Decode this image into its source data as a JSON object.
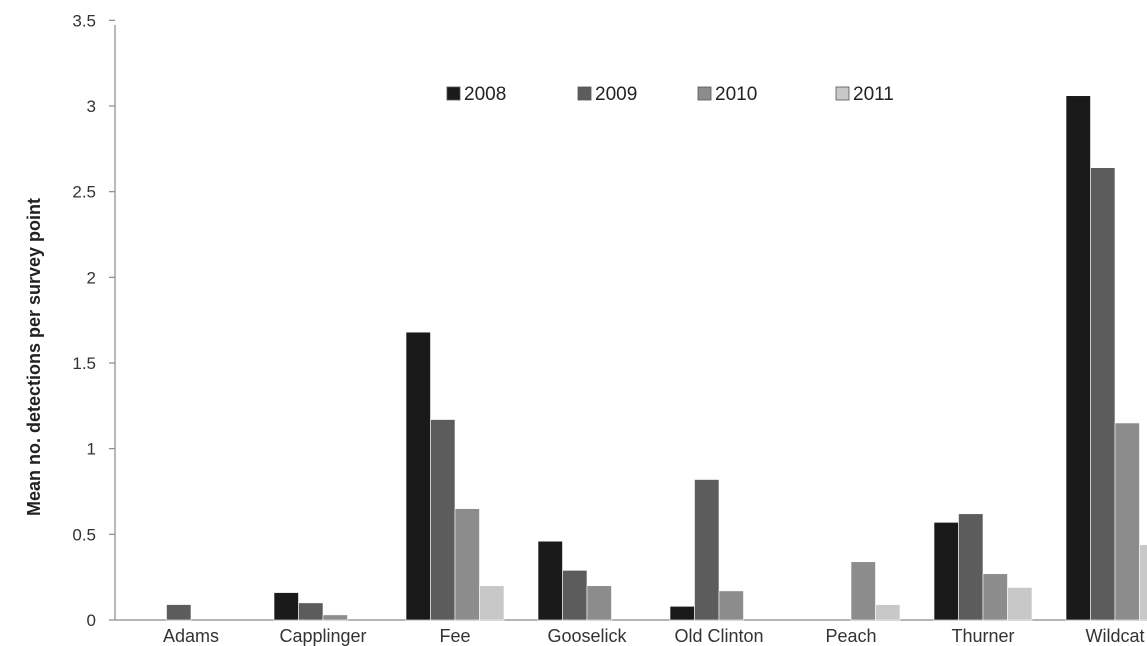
{
  "chart_data": {
    "type": "bar",
    "title": "",
    "xlabel": "",
    "ylabel": "Mean  no.  detections per survey point",
    "ylim": [
      0,
      3.5
    ],
    "yticks": [
      "0",
      "0.5",
      "1",
      "1.5",
      "2",
      "2.5",
      "3",
      "3.5"
    ],
    "grid": false,
    "legend_position": "top-center",
    "categories": [
      "Adams",
      "Capplinger",
      "Fee",
      "Gooselick",
      "Old Clinton",
      "Peach",
      "Thurner",
      "Wildcat"
    ],
    "series": [
      {
        "name": "2008",
        "color": "#1a1a1a",
        "values": [
          0,
          0.16,
          1.68,
          0.46,
          0.08,
          0,
          0.57,
          3.06
        ]
      },
      {
        "name": "2009",
        "color": "#5c5c5c",
        "values": [
          0.09,
          0.1,
          1.17,
          0.29,
          0.82,
          0,
          0.62,
          2.64
        ]
      },
      {
        "name": "2010",
        "color": "#8c8c8c",
        "values": [
          0,
          0.03,
          0.65,
          0.2,
          0.17,
          0.34,
          0.27,
          1.15
        ]
      },
      {
        "name": "2011",
        "color": "#c8c8c8",
        "values": [
          0,
          0,
          0.2,
          0,
          0,
          0.09,
          0.19,
          0.44
        ]
      }
    ]
  }
}
